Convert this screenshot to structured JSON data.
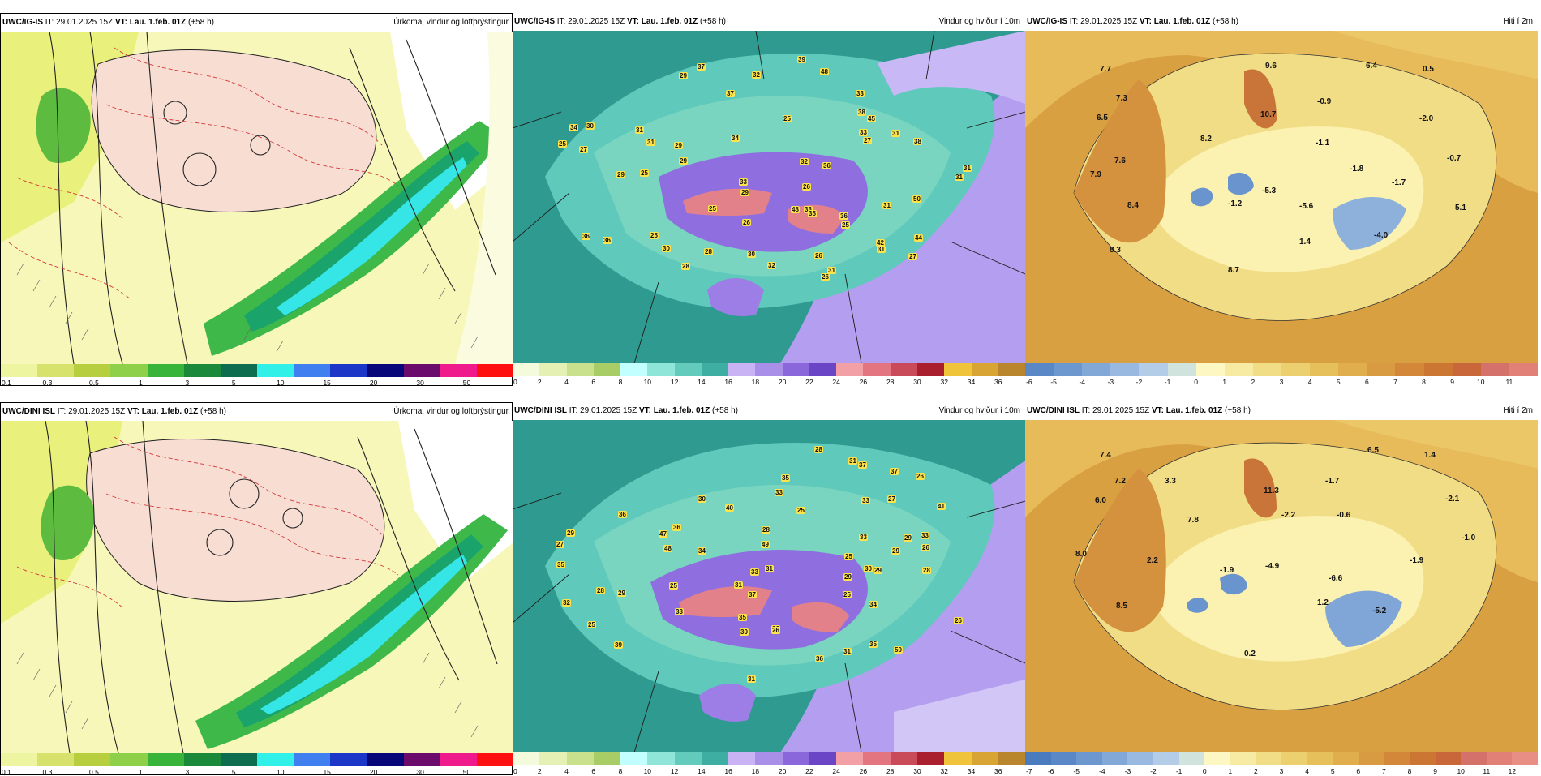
{
  "rows": [
    {
      "model": "UWC/IG-IS",
      "run_time": "IT: 29.01.2025 15Z",
      "valid_time": "VT: Lau. 1.feb. 01Z",
      "lead": "(+58 h)"
    },
    {
      "model": "UWC/DINI ISL",
      "run_time": "IT: 29.01.2025 15Z",
      "valid_time": "VT: Lau. 1.feb. 01Z",
      "lead": "(+58 h)"
    }
  ],
  "panel_titles": {
    "precip": "Úrkoma, vindur og loftþrýstingur",
    "wind": "Vindur og hviður í 10m",
    "temp": "Hiti í 2m"
  },
  "legends": {
    "precip": {
      "ticks": [
        "0.1",
        "0.3",
        "0.5",
        "1",
        "3",
        "5",
        "10",
        "15",
        "20",
        "30",
        "50"
      ],
      "colors": [
        "#eef5a0",
        "#d6e26b",
        "#b7cf3f",
        "#8fd04b",
        "#39b43a",
        "#1a8a3a",
        "#0e6c4f",
        "#31f0e8",
        "#3f7ff0",
        "#1c37c8",
        "#07077a",
        "#6b0b6b",
        "#ef1b8c",
        "#ff1010"
      ]
    },
    "wind": {
      "ticks": [
        "0",
        "2",
        "4",
        "6",
        "8",
        "10",
        "12",
        "14",
        "16",
        "18",
        "20",
        "22",
        "24",
        "26",
        "28",
        "30",
        "32",
        "34",
        "36"
      ],
      "colors": [
        "#f4fadc",
        "#e4f0b4",
        "#c9e08c",
        "#a9cd66",
        "#c2ffff",
        "#8fe6d8",
        "#62cbbc",
        "#3eaea2",
        "#c9b3f5",
        "#a98fe8",
        "#8a68dc",
        "#6a45c6",
        "#f2a0a6",
        "#e27580",
        "#c94a58",
        "#a91f2e",
        "#f0c43a",
        "#d8a434",
        "#b9862e"
      ]
    },
    "temp_top": {
      "ticks": [
        "-6",
        "-5",
        "-4",
        "-3",
        "-2",
        "-1",
        "0",
        "1",
        "2",
        "3",
        "4",
        "5",
        "6",
        "7",
        "8",
        "9",
        "10",
        "11"
      ],
      "colors": [
        "#5a88c6",
        "#6d97cf",
        "#82a8d8",
        "#9ab9e0",
        "#b3cce8",
        "#d0e3dc",
        "#fdf7c4",
        "#f7eaa3",
        "#f2dd87",
        "#eccf6e",
        "#e6c05b",
        "#e0ae4c",
        "#d99b41",
        "#d28838",
        "#cb7632",
        "#c9663a",
        "#d4716a",
        "#e08077"
      ]
    },
    "temp_bottom": {
      "ticks": [
        "-7",
        "-6",
        "-5",
        "-4",
        "-3",
        "-2",
        "-1",
        "0",
        "1",
        "2",
        "3",
        "4",
        "5",
        "6",
        "7",
        "8",
        "9",
        "10",
        "11",
        "12"
      ],
      "colors": [
        "#4a7bbf",
        "#5a88c6",
        "#6d97cf",
        "#82a8d8",
        "#9ab9e0",
        "#b3cce8",
        "#d0e3dc",
        "#fdf7c4",
        "#f7eaa3",
        "#f2dd87",
        "#eccf6e",
        "#e6c05b",
        "#e0ae4c",
        "#d99b41",
        "#d28838",
        "#cb7632",
        "#c9663a",
        "#d4716a",
        "#e08077",
        "#e88e85"
      ]
    }
  },
  "temp_labels_top": [
    "7.7",
    "9.6",
    "6.4",
    "0.5",
    "7.3",
    "6.5",
    "10.7",
    "-0.9",
    "8.2",
    "-1.1",
    "-2.0",
    "7.6",
    "-1.8",
    "-0.7",
    "7.9",
    "-1.2",
    "-5.3",
    "-1.7",
    "8.4",
    "-5.6",
    "5.1",
    "-4.0",
    "8.3",
    "1.4",
    "8.7"
  ],
  "temp_labels_bottom": [
    "7.4",
    "6.5",
    "1.4",
    "7.2",
    "3.3",
    "11.3",
    "-1.7",
    "6.0",
    "-2.1",
    "7.8",
    "-2.2",
    "-0.6",
    "-1.0",
    "8.0",
    "2.2",
    "-1.9",
    "-4.9",
    "-6.6",
    "-1.9",
    "8.5",
    "1.2",
    "-5.2",
    "0.2"
  ],
  "wind_labels_top": [
    "31",
    "29",
    "25",
    "31",
    "31",
    "26",
    "31",
    "29",
    "29",
    "30",
    "36",
    "34",
    "33",
    "33",
    "27",
    "27",
    "31",
    "38",
    "42",
    "35",
    "28",
    "31",
    "36",
    "45",
    "25",
    "31",
    "32",
    "37",
    "25",
    "33",
    "28",
    "37",
    "30",
    "39",
    "30",
    "31",
    "36",
    "32",
    "32",
    "44",
    "48",
    "50",
    "48",
    "26",
    "26",
    "25",
    "25",
    "29",
    "38",
    "27",
    "34",
    "36",
    "25",
    "26",
    "33",
    "29"
  ],
  "wind_labels_bottom": [
    "25",
    "29",
    "26",
    "31",
    "27",
    "33",
    "28",
    "30",
    "29",
    "32",
    "34",
    "33",
    "26",
    "28",
    "37",
    "40",
    "37",
    "35",
    "33",
    "31",
    "26",
    "39",
    "36",
    "33",
    "29",
    "41",
    "28",
    "29",
    "35",
    "34",
    "25",
    "31",
    "29",
    "31",
    "25",
    "35",
    "31",
    "27",
    "30",
    "36",
    "33",
    "35",
    "47",
    "49",
    "50",
    "48",
    "37",
    "29",
    "26",
    "28",
    "30",
    "33",
    "36",
    "26",
    "25",
    "25"
  ]
}
